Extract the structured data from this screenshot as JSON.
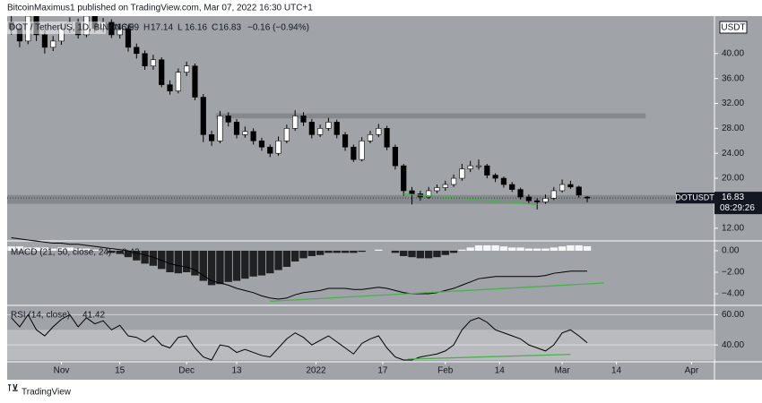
{
  "chart_data": {
    "type": "candlestick",
    "credit": "BitcoinMaximus1 published on TradingView.com, Mar 07, 2022 16:30 UTC+1",
    "symbol": "DOT / TetherUS, 1D, BINANCE",
    "ohlc_labels": [
      "O",
      "H",
      "L",
      "C"
    ],
    "change": "−0.16 (−0.94%)",
    "currency": "USDT",
    "tag": "DOTUSDT",
    "countdown": "08:29:26",
    "last_label": "16.83",
    "footer": "TradingView",
    "colors": {
      "up": "#ffffff",
      "down": "#000000",
      "zone": "#7c7f84",
      "trend": "#4caf50",
      "line": "#000000"
    },
    "xlim": [
      -13,
      156.5
    ],
    "xticks": [
      {
        "value": 0,
        "label": "Nov"
      },
      {
        "value": 14,
        "label": "15"
      },
      {
        "value": 30,
        "label": "Dec"
      },
      {
        "value": 42,
        "label": "13"
      },
      {
        "value": 61,
        "label": "2022"
      },
      {
        "value": 77,
        "label": "17"
      },
      {
        "value": 92,
        "label": "Feb"
      },
      {
        "value": 105,
        "label": "14"
      },
      {
        "value": 120,
        "label": "Mar"
      },
      {
        "value": 133,
        "label": "14"
      },
      {
        "value": 151,
        "label": "Apr"
      }
    ],
    "ylim": [
      10.1,
      46
    ],
    "yticks": [
      {
        "value": 12,
        "label": "12.00"
      },
      {
        "value": 20,
        "label": "20.00"
      },
      {
        "value": 24,
        "label": "24.00"
      },
      {
        "value": 28,
        "label": "28.00"
      },
      {
        "value": 32,
        "label": "32.00"
      },
      {
        "value": 36,
        "label": "36.00"
      },
      {
        "value": 40,
        "label": "40.00"
      }
    ],
    "days": [
      -12,
      -10,
      -8,
      -6,
      -4,
      -2,
      0,
      2,
      4,
      6,
      8,
      10,
      12,
      14,
      16,
      18,
      20,
      22,
      24,
      26,
      28,
      30,
      32,
      34,
      36,
      38,
      40,
      42,
      44,
      46,
      48,
      50,
      52,
      54,
      56,
      58,
      60,
      62,
      64,
      66,
      68,
      70,
      72,
      74,
      76,
      78,
      80,
      82,
      84,
      86,
      88,
      90,
      92,
      94,
      96,
      98,
      100,
      102,
      104,
      106,
      108,
      110,
      112,
      114,
      116,
      118,
      120,
      122,
      124,
      126
    ],
    "ohlc": [
      [
        45,
        46,
        43,
        44
      ],
      [
        44,
        44.8,
        41,
        42
      ],
      [
        42,
        47,
        41.5,
        46
      ],
      [
        46,
        46.5,
        42,
        43
      ],
      [
        43,
        43.8,
        40,
        41
      ],
      [
        41,
        42.8,
        40.4,
        42
      ],
      [
        42,
        44.8,
        41.4,
        44
      ],
      [
        44,
        45.8,
        43.3,
        45
      ],
      [
        45,
        45.6,
        42.4,
        43
      ],
      [
        43,
        46.8,
        42.6,
        46
      ],
      [
        46,
        46.6,
        43.4,
        44
      ],
      [
        44,
        45.7,
        43.4,
        45
      ],
      [
        45,
        45.5,
        42.5,
        43
      ],
      [
        43,
        44.8,
        42.4,
        44
      ],
      [
        44,
        44.5,
        40.3,
        41
      ],
      [
        41,
        41.6,
        39.2,
        40
      ],
      [
        40,
        40.5,
        37.4,
        38
      ],
      [
        38,
        39.8,
        37.4,
        39
      ],
      [
        39,
        39.4,
        34.6,
        35
      ],
      [
        35,
        35.7,
        33.4,
        34
      ],
      [
        34,
        37.6,
        33.6,
        37
      ],
      [
        37,
        38.7,
        36.4,
        38
      ],
      [
        38,
        38.4,
        32.5,
        33
      ],
      [
        33,
        33.5,
        25.8,
        27
      ],
      [
        27,
        27.6,
        25.2,
        26
      ],
      [
        26,
        30.8,
        25.6,
        30
      ],
      [
        30,
        30.6,
        28.3,
        29
      ],
      [
        29,
        29.5,
        26.4,
        27
      ],
      [
        27,
        28.3,
        26.5,
        27.5
      ],
      [
        27.5,
        28,
        25.4,
        26
      ],
      [
        26,
        26.5,
        24.4,
        25
      ],
      [
        25,
        25.4,
        23.4,
        24
      ],
      [
        24,
        26.7,
        23.6,
        26
      ],
      [
        26,
        28.6,
        25.6,
        28
      ],
      [
        28,
        30.9,
        27.6,
        30
      ],
      [
        30,
        30.6,
        28.4,
        29
      ],
      [
        29,
        29.5,
        26.4,
        27
      ],
      [
        27,
        28.6,
        26.6,
        28
      ],
      [
        28,
        29.7,
        27.6,
        29
      ],
      [
        29,
        29.4,
        26.4,
        27
      ],
      [
        27,
        27.4,
        24.4,
        25
      ],
      [
        25,
        25.4,
        22.6,
        23
      ],
      [
        23,
        26.6,
        22.7,
        26
      ],
      [
        26,
        27.6,
        25.6,
        27
      ],
      [
        27,
        28.7,
        26.6,
        28
      ],
      [
        28,
        28.4,
        24.5,
        25
      ],
      [
        25,
        25.4,
        21.4,
        22
      ],
      [
        22,
        22.3,
        17.2,
        18
      ],
      [
        18,
        18.6,
        15.8,
        17.5
      ],
      [
        17.5,
        18,
        16.4,
        17
      ],
      [
        17,
        18.6,
        16.7,
        18
      ],
      [
        18,
        19,
        17.6,
        18.5
      ],
      [
        18.5,
        19.6,
        18,
        19
      ],
      [
        19,
        20.6,
        18.6,
        20
      ],
      [
        20,
        22.3,
        19.6,
        21.5
      ],
      [
        21.5,
        22.8,
        21,
        22
      ],
      [
        22,
        23,
        21.4,
        22
      ],
      [
        22,
        22.3,
        20,
        20.5
      ],
      [
        20.5,
        20.8,
        19.4,
        20
      ],
      [
        20,
        20.3,
        18.5,
        19
      ],
      [
        19,
        19.4,
        17.8,
        18.2
      ],
      [
        18.2,
        18.5,
        16.6,
        17
      ],
      [
        17,
        17.4,
        16,
        16.4
      ],
      [
        16.4,
        16.8,
        15,
        16.2
      ],
      [
        16.2,
        17.4,
        15.9,
        16.8
      ],
      [
        16.8,
        18.6,
        16.5,
        18
      ],
      [
        18,
        19.8,
        17.7,
        19
      ],
      [
        19,
        19.6,
        18.3,
        18.6
      ],
      [
        18.6,
        18.8,
        16.9,
        17.3
      ],
      [
        16.99,
        17.14,
        16.16,
        16.83
      ]
    ],
    "zones": [
      {
        "from": 29.6,
        "to": 30.4,
        "start": 37,
        "end": 140
      },
      {
        "from": 15.9,
        "to": 17.3,
        "start": -13,
        "end": 156.5
      }
    ],
    "price_trend": [
      [
        82,
        17.5
      ],
      [
        114,
        15.8
      ]
    ],
    "macd": {
      "name": "MACD (21, 50, close, 24)",
      "ylim": [
        -5.0,
        0.83
      ],
      "yticks": [
        {
          "value": 0,
          "label": "0.00"
        },
        {
          "value": -2,
          "label": "−2.00"
        },
        {
          "value": -4,
          "label": "−4.00"
        }
      ],
      "line": [
        1.2,
        1.1,
        1.0,
        0.9,
        0.8,
        0.7,
        0.7,
        0.6,
        0.6,
        0.5,
        0.4,
        0.3,
        0.2,
        0.1,
        0.0,
        -0.2,
        -0.4,
        -0.6,
        -0.9,
        -1.2,
        -1.4,
        -1.5,
        -1.8,
        -2.3,
        -2.8,
        -3.0,
        -3.2,
        -3.5,
        -3.7,
        -3.9,
        -4.2,
        -4.4,
        -4.5,
        -4.4,
        -4.1,
        -3.9,
        -3.8,
        -3.7,
        -3.5,
        -3.5,
        -3.5,
        -3.6,
        -3.6,
        -3.5,
        -3.4,
        -3.5,
        -3.7,
        -3.9,
        -4.0,
        -4.0,
        -4.0,
        -3.9,
        -3.7,
        -3.5,
        -3.2,
        -2.9,
        -2.6,
        -2.5,
        -2.4,
        -2.4,
        -2.4,
        -2.4,
        -2.4,
        -2.4,
        -2.3,
        -2.1,
        -2.0,
        -1.9,
        -1.9,
        -1.9
      ],
      "histogram": [
        0.4,
        0.4,
        0.3,
        0.3,
        0.3,
        0.2,
        0.3,
        0.3,
        0.2,
        0.2,
        0.1,
        0.0,
        -0.2,
        -0.3,
        -0.6,
        -0.9,
        -1.2,
        -1.4,
        -1.7,
        -2.0,
        -2.1,
        -2.0,
        -2.3,
        -2.8,
        -3.2,
        -3.1,
        -2.9,
        -2.8,
        -2.6,
        -2.4,
        -2.3,
        -2.1,
        -1.8,
        -1.5,
        -1.0,
        -0.7,
        -0.5,
        -0.4,
        -0.2,
        -0.2,
        -0.2,
        -0.2,
        -0.1,
        0.0,
        0.1,
        0.0,
        -0.2,
        -0.5,
        -0.6,
        -0.7,
        -0.7,
        -0.6,
        -0.4,
        -0.2,
        0.1,
        0.3,
        0.5,
        0.5,
        0.5,
        0.4,
        0.3,
        0.3,
        0.2,
        0.2,
        0.2,
        0.3,
        0.4,
        0.5,
        0.5,
        0.42
      ],
      "trend": [
        [
          50,
          -4.7
        ],
        [
          130,
          -3.0
        ]
      ]
    },
    "rsi": {
      "name": "RSI (14, close)",
      "ylim": [
        29.4,
        65.6
      ],
      "band": [
        30,
        50
      ],
      "yticks": [
        {
          "value": 60,
          "label": "60.00"
        },
        {
          "value": 40,
          "label": "40.00"
        }
      ],
      "values": [
        58,
        52,
        60,
        50,
        46,
        52,
        57,
        60,
        52,
        58,
        54,
        56,
        50,
        53,
        46,
        45,
        42,
        46,
        40,
        38,
        45,
        46,
        38,
        32,
        30,
        40,
        39,
        35,
        37,
        35,
        33,
        32,
        38,
        44,
        48,
        45,
        40,
        43,
        46,
        42,
        38,
        34,
        41,
        44,
        46,
        38,
        32,
        30,
        30,
        32,
        33,
        34,
        36,
        40,
        50,
        56,
        58,
        55,
        50,
        48,
        46,
        44,
        40,
        38,
        36,
        40,
        48,
        50,
        46,
        41.42
      ],
      "trend": [
        [
          83,
          30.6
        ],
        [
          122,
          33.7
        ]
      ]
    }
  }
}
